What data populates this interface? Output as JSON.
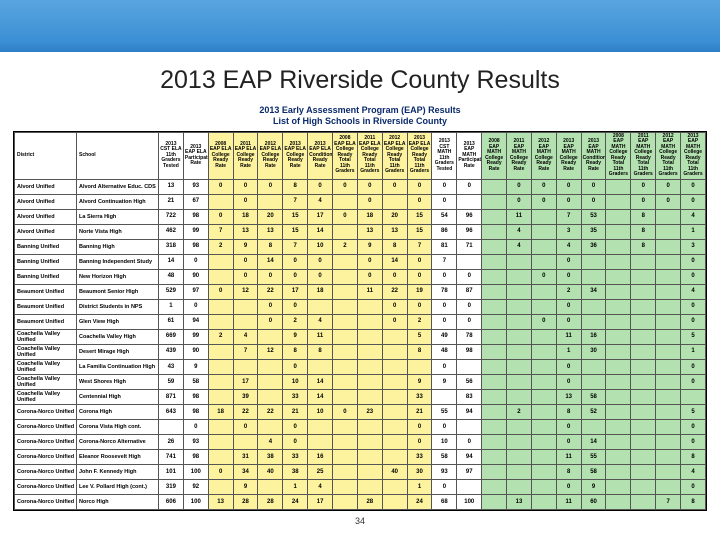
{
  "slide": {
    "title": "2013 EAP Riverside County Results",
    "subtitle_line1": "2013 Early Assessment Program (EAP) Results",
    "subtitle_line2": "List of High Schools in Riverside County",
    "page_number": "34"
  },
  "colors": {
    "band_top": "#5aa5e0",
    "band_bottom": "#2d7fc5",
    "white": "#ffffff",
    "yellow": "#fdf39f",
    "green": "#b3e2b0"
  },
  "columns": {
    "district": "District",
    "school": "School",
    "white": [
      "2013 CST ELA 11th Graders Tested",
      "2013 EAP ELA Participation Rate"
    ],
    "yellow": [
      "2008 EAP ELA College Ready Rate",
      "2011 EAP ELA College Ready Rate",
      "2012 EAP ELA College Ready Rate",
      "2013 EAP ELA College Ready Rate",
      "2013 EAP ELA Conditional Ready Rate",
      "2008 EAP ELA College Ready Total 11th Graders",
      "2011 EAP ELA College Ready Total 11th Graders",
      "2012 EAP ELA College Ready Total 11th Graders",
      "2013 EAP ELA College Ready Total 11th Graders"
    ],
    "white2": [
      "2013 CST MATH 11th Graders Tested",
      "2013 EAP MATH Participation Rate"
    ],
    "green": [
      "2008 EAP MATH College Ready Rate",
      "2011 EAP MATH College Ready Rate",
      "2012 EAP MATH College Ready Rate",
      "2013 EAP MATH College Ready Rate",
      "2013 EAP MATH Conditional Ready Rate",
      "2008 EAP MATH College Ready Total 11th Graders",
      "2011 EAP MATH College Ready Total 11th Graders",
      "2012 EAP MATH College Ready Total 11th Graders",
      "2013 EAP MATH College Ready Total 11th Graders"
    ]
  },
  "rows": [
    {
      "district": "Alvord Unified",
      "school": "Alvord Alternative Educ. CDS",
      "white": [
        "13",
        "93"
      ],
      "yellow": [
        "0",
        "0",
        "0",
        "8",
        "0",
        "0",
        "0",
        "0",
        "0"
      ],
      "white2": [
        "0",
        "0"
      ],
      "green": [
        "",
        "0",
        "0",
        "0",
        "0",
        "",
        "0",
        "0",
        "0"
      ]
    },
    {
      "district": "Alvord Unified",
      "school": "Alvord Continuation High",
      "white": [
        "21",
        "67"
      ],
      "yellow": [
        "",
        "0",
        "",
        "7",
        "4",
        "",
        "0",
        "",
        "0"
      ],
      "white2": [
        "0",
        ""
      ],
      "green": [
        "",
        "0",
        "0",
        "0",
        "0",
        "",
        "0",
        "0",
        "0"
      ]
    },
    {
      "district": "Alvord Unified",
      "school": "La Sierra High",
      "white": [
        "722",
        "98"
      ],
      "yellow": [
        "0",
        "18",
        "20",
        "15",
        "17",
        "0",
        "18",
        "20",
        "15"
      ],
      "white2": [
        "54",
        "96"
      ],
      "green": [
        "",
        "11",
        "",
        "7",
        "53",
        "",
        "8",
        "",
        "4"
      ]
    },
    {
      "district": "Alvord Unified",
      "school": "Norte Vista High",
      "white": [
        "462",
        "99"
      ],
      "yellow": [
        "7",
        "13",
        "13",
        "15",
        "14",
        "",
        "13",
        "13",
        "15"
      ],
      "white2": [
        "86",
        "96"
      ],
      "green": [
        "",
        "4",
        "",
        "3",
        "35",
        "",
        "8",
        "",
        "1"
      ]
    },
    {
      "district": "Banning Unified",
      "school": "Banning High",
      "white": [
        "318",
        "98"
      ],
      "yellow": [
        "2",
        "9",
        "8",
        "7",
        "10",
        "2",
        "9",
        "8",
        "7"
      ],
      "white2": [
        "81",
        "71"
      ],
      "green": [
        "",
        "4",
        "",
        "4",
        "36",
        "",
        "8",
        "",
        "3"
      ]
    },
    {
      "district": "Banning Unified",
      "school": "Banning Independent Study",
      "white": [
        "14",
        "0"
      ],
      "yellow": [
        "",
        "0",
        "14",
        "0",
        "0",
        "",
        "0",
        "14",
        "0"
      ],
      "white2": [
        "7",
        ""
      ],
      "green": [
        "",
        "",
        "",
        "0",
        "",
        "",
        "",
        "",
        "0"
      ]
    },
    {
      "district": "Banning Unified",
      "school": "New Horizon High",
      "white": [
        "48",
        "90"
      ],
      "yellow": [
        "",
        "0",
        "0",
        "0",
        "0",
        "",
        "0",
        "0",
        "0"
      ],
      "white2": [
        "0",
        "0"
      ],
      "green": [
        "",
        "",
        "0",
        "0",
        "",
        "",
        "",
        "",
        "0"
      ]
    },
    {
      "district": "Beaumont Unified",
      "school": "Beaumont Senior High",
      "white": [
        "529",
        "97"
      ],
      "yellow": [
        "0",
        "12",
        "22",
        "17",
        "18",
        "",
        "11",
        "22",
        "19"
      ],
      "white2": [
        "78",
        "87"
      ],
      "green": [
        "",
        "",
        "",
        "2",
        "34",
        "",
        "",
        "",
        "4"
      ]
    },
    {
      "district": "Beaumont Unified",
      "school": "District Students in NPS",
      "white": [
        "1",
        "0"
      ],
      "yellow": [
        "",
        "",
        "0",
        "0",
        "",
        "",
        "",
        "0",
        "0"
      ],
      "white2": [
        "0",
        "0"
      ],
      "green": [
        "",
        "",
        "",
        "0",
        "",
        "",
        "",
        "",
        "0"
      ]
    },
    {
      "district": "Beaumont Unified",
      "school": "Glen View High",
      "white": [
        "61",
        "94"
      ],
      "yellow": [
        "",
        "",
        "0",
        "2",
        "4",
        "",
        "",
        "0",
        "2"
      ],
      "white2": [
        "0",
        "0"
      ],
      "green": [
        "",
        "",
        "0",
        "0",
        "",
        "",
        "",
        "",
        "0"
      ]
    },
    {
      "district": "Coachella Valley Unified",
      "school": "Coachella Valley High",
      "white": [
        "669",
        "99"
      ],
      "yellow": [
        "2",
        "4",
        "",
        "9",
        "11",
        "",
        "",
        "",
        "5"
      ],
      "white2": [
        "49",
        "78"
      ],
      "green": [
        "",
        "",
        "",
        "11",
        "16",
        "",
        "",
        "",
        "5"
      ]
    },
    {
      "district": "Coachella Valley Unified",
      "school": "Desert Mirage High",
      "white": [
        "439",
        "90"
      ],
      "yellow": [
        "",
        "7",
        "12",
        "8",
        "8",
        "",
        "",
        "",
        "8"
      ],
      "white2": [
        "48",
        "98"
      ],
      "green": [
        "",
        "",
        "",
        "1",
        "30",
        "",
        "",
        "",
        "1"
      ]
    },
    {
      "district": "Coachella Valley Unified",
      "school": "La Familia Continuation High",
      "white": [
        "43",
        "9"
      ],
      "yellow": [
        "",
        "",
        "",
        "0",
        "",
        "",
        "",
        "",
        ""
      ],
      "white2": [
        "0",
        ""
      ],
      "green": [
        "",
        "",
        "",
        "0",
        "",
        "",
        "",
        "",
        "0"
      ]
    },
    {
      "district": "Coachella Valley Unified",
      "school": "West Shores High",
      "white": [
        "59",
        "58"
      ],
      "yellow": [
        "",
        "17",
        "",
        "10",
        "14",
        "",
        "",
        "",
        "9"
      ],
      "white2": [
        "9",
        "56"
      ],
      "green": [
        "",
        "",
        "",
        "0",
        "",
        "",
        "",
        "",
        "0"
      ]
    },
    {
      "district": "Coachella Valley Unified",
      "school": "Centennial High",
      "white": [
        "871",
        "98"
      ],
      "yellow": [
        "",
        "39",
        "",
        "33",
        "14",
        "",
        "",
        "",
        "33"
      ],
      "white2": [
        "",
        "83"
      ],
      "green": [
        "",
        "",
        "",
        "13",
        "58",
        "",
        "",
        "",
        ""
      ]
    },
    {
      "district": "Corona-Norco Unified",
      "school": "Corona High",
      "white": [
        "643",
        "98"
      ],
      "yellow": [
        "18",
        "22",
        "22",
        "21",
        "10",
        "0",
        "23",
        "",
        "21"
      ],
      "white2": [
        "55",
        "94"
      ],
      "green": [
        "",
        "2",
        "",
        "8",
        "52",
        "",
        "",
        "",
        "5"
      ]
    },
    {
      "district": "Corona-Norco Unified",
      "school": "Corona Vista High cont.",
      "white": [
        "",
        "0"
      ],
      "yellow": [
        "",
        "0",
        "",
        "0",
        "",
        "",
        "",
        "",
        "0"
      ],
      "white2": [
        "0",
        ""
      ],
      "green": [
        "",
        "",
        "",
        "0",
        "",
        "",
        "",
        "",
        "0"
      ]
    },
    {
      "district": "Corona-Norco Unified",
      "school": "Corona-Norco Alternative",
      "white": [
        "26",
        "93"
      ],
      "yellow": [
        "",
        "",
        "4",
        "0",
        "",
        "",
        "",
        "",
        "0"
      ],
      "white2": [
        "10",
        "0"
      ],
      "green": [
        "",
        "",
        "",
        "0",
        "14",
        "",
        "",
        "",
        "0"
      ]
    },
    {
      "district": "Corona-Norco Unified",
      "school": "Eleanor Roosevelt High",
      "white": [
        "741",
        "98"
      ],
      "yellow": [
        "",
        "31",
        "38",
        "33",
        "16",
        "",
        "",
        "",
        "33"
      ],
      "white2": [
        "58",
        "94"
      ],
      "green": [
        "",
        "",
        "",
        "11",
        "55",
        "",
        "",
        "",
        "8"
      ]
    },
    {
      "district": "Corona-Norco Unified",
      "school": "John F. Kennedy High",
      "white": [
        "101",
        "100"
      ],
      "yellow": [
        "0",
        "34",
        "40",
        "38",
        "25",
        "",
        "",
        "40",
        "30"
      ],
      "white2": [
        "93",
        "97"
      ],
      "green": [
        "",
        "",
        "",
        "8",
        "58",
        "",
        "",
        "",
        "4"
      ]
    },
    {
      "district": "Corona-Norco Unified",
      "school": "Lee V. Pollard High (cont.)",
      "white": [
        "319",
        "92"
      ],
      "yellow": [
        "",
        "9",
        "",
        "1",
        "4",
        "",
        "",
        "",
        "1"
      ],
      "white2": [
        "0",
        ""
      ],
      "green": [
        "",
        "",
        "",
        "0",
        "9",
        "",
        "",
        "",
        "0"
      ]
    },
    {
      "district": "Corona-Norco Unified",
      "school": "Norco High",
      "white": [
        "606",
        "100"
      ],
      "yellow": [
        "13",
        "28",
        "28",
        "24",
        "17",
        "",
        "28",
        "",
        "24"
      ],
      "white2": [
        "68",
        "100"
      ],
      "green": [
        "",
        "13",
        "",
        "11",
        "60",
        "",
        "",
        "7",
        "8"
      ]
    }
  ]
}
